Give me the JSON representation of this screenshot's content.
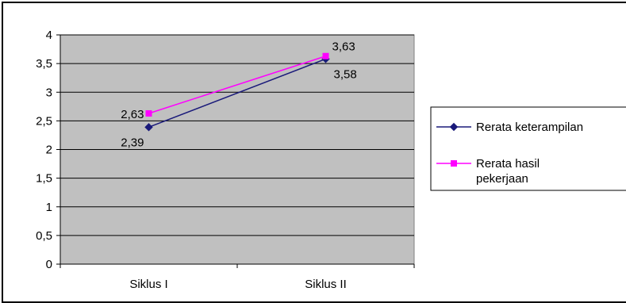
{
  "chart_data": {
    "type": "line",
    "categories": [
      "Siklus I",
      "Siklus II"
    ],
    "series": [
      {
        "name": "Rerata keterampilan",
        "values": [
          2.39,
          3.58
        ],
        "color": "#1a1a7a",
        "marker": "diamond",
        "labels": [
          "2,39",
          "3,58"
        ]
      },
      {
        "name": "Rerata hasil pekerjaan",
        "values": [
          2.63,
          3.63
        ],
        "color": "#ff00ff",
        "marker": "square",
        "labels": [
          "2,63",
          "3,63"
        ]
      }
    ],
    "ylim": [
      0,
      4
    ],
    "yticks": [
      0,
      0.5,
      1,
      1.5,
      2,
      2.5,
      3,
      3.5,
      4
    ],
    "ytick_labels": [
      "0",
      "0,5",
      "1",
      "1,5",
      "2",
      "2,5",
      "3",
      "3,5",
      "4"
    ],
    "plot_background": "#c0c0c0",
    "grid": true,
    "legend": {
      "position": "right",
      "entries": [
        {
          "lines": [
            "Rerata keterampilan"
          ]
        },
        {
          "lines": [
            "Rerata hasil",
            "pekerjaan"
          ]
        }
      ]
    }
  }
}
